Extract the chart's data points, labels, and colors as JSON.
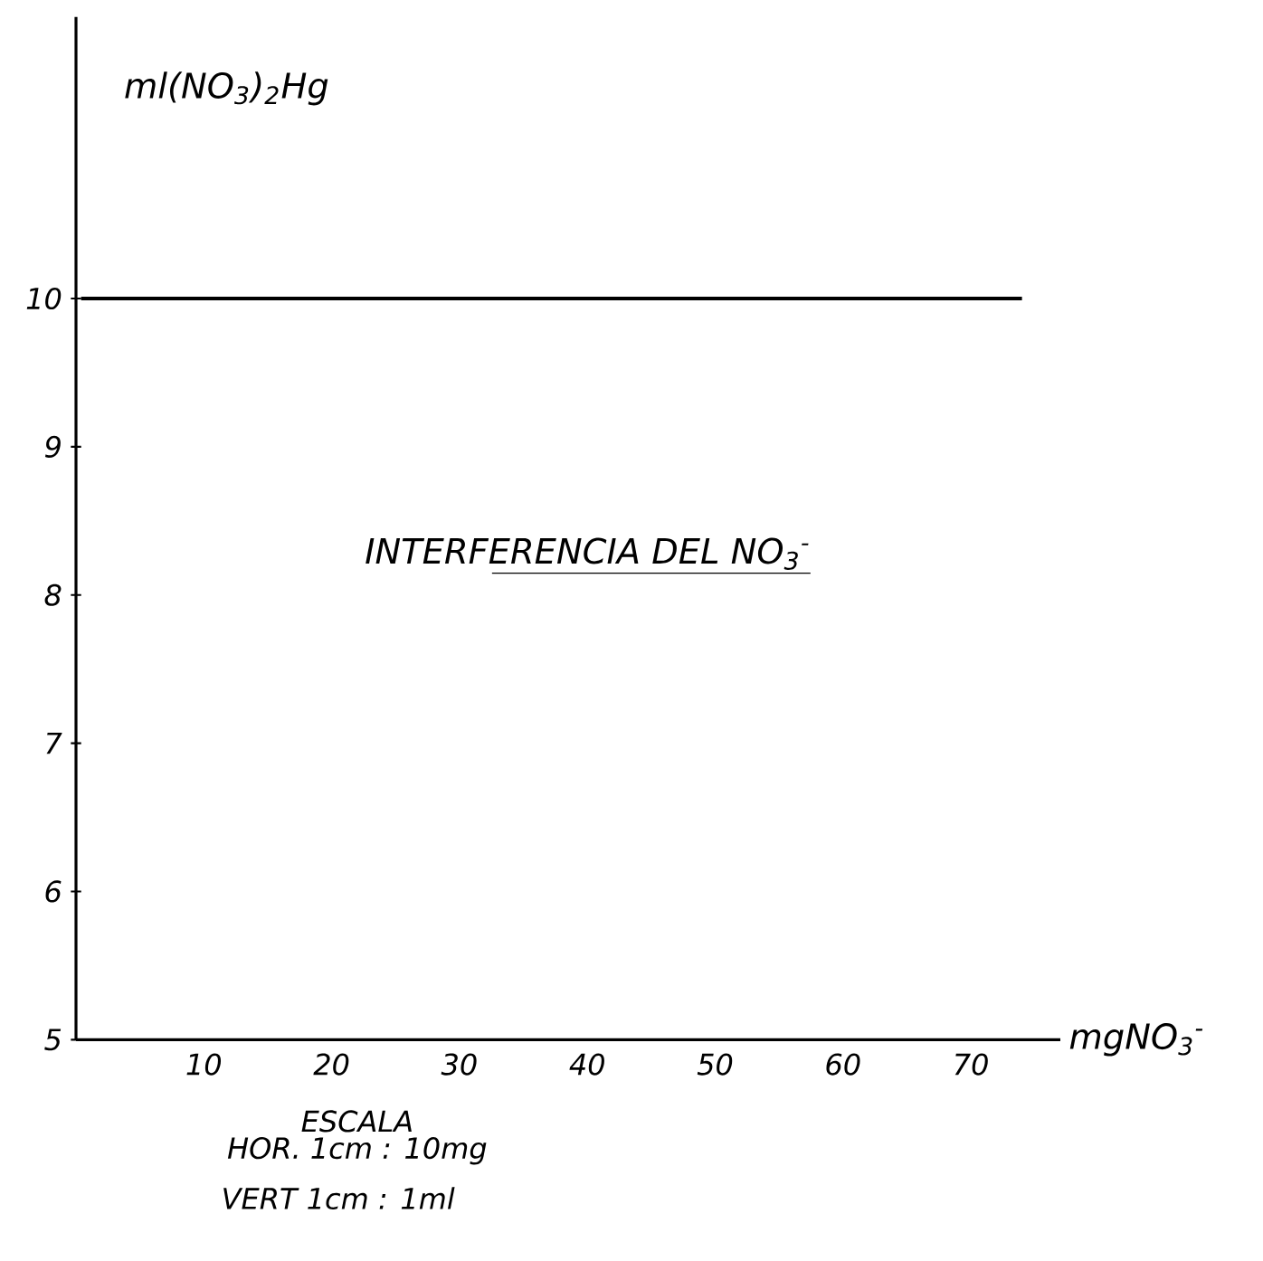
{
  "chart_data": {
    "type": "line",
    "title": "INTERFERENCIA DEL NO$_{3}$$^{-}$",
    "xlabel": "mgNO$_{3}$$^{-}$",
    "ylabel": "ml(NO$_{3}$)$_{2}$Hg",
    "annotations": [
      "ESCALA",
      "HOR. 1cm : 10mg",
      "VERT 1cm : 1ml"
    ],
    "x": [
      0.4,
      74
    ],
    "series": [
      {
        "color": "#000000",
        "values": [
          10,
          10
        ]
      }
    ],
    "xlim": [
      0,
      77
    ],
    "ylim": [
      5,
      11.9
    ],
    "xticks": [
      10,
      20,
      30,
      40,
      50,
      60,
      70
    ],
    "yticks": [
      5,
      6,
      7,
      8,
      9,
      10
    ],
    "grid": false,
    "marker": "none",
    "line_style": "solid"
  }
}
